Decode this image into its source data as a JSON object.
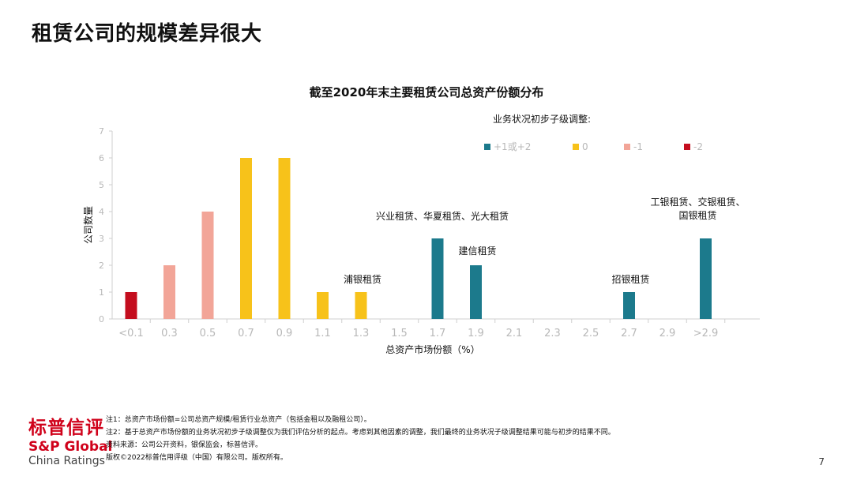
{
  "slide_title": "租赁公司的规模差异很大",
  "colors": {
    "plus": "#1c7a8c",
    "zero": "#f7c21a",
    "minus1": "#f2a598",
    "minus2": "#c40d1e",
    "axis": "#cfcfcf",
    "tick_text": "#b8b8b8",
    "brand_red": "#d0021b"
  },
  "chart_data": {
    "type": "bar",
    "title": "截至2020年末主要租赁公司总资产份额分布",
    "xlabel": "总资产市场份额（%）",
    "ylabel": "公司数量",
    "ylim": [
      0,
      7
    ],
    "yticks": [
      0,
      1,
      2,
      3,
      4,
      5,
      6,
      7
    ],
    "grid": false,
    "legend": {
      "title": "业务状况初步子级调整:",
      "placement": "top-right",
      "entries": [
        {
          "label": "+1或+2",
          "color_key": "plus"
        },
        {
          "label": "0",
          "color_key": "zero"
        },
        {
          "label": "-1",
          "color_key": "minus1"
        },
        {
          "label": "-2",
          "color_key": "minus2"
        }
      ]
    },
    "categories": [
      "<0.1",
      "0.3",
      "0.5",
      "0.7",
      "0.9",
      "1.1",
      "1.3",
      "1.5",
      "1.7",
      "1.9",
      "2.1",
      "2.3",
      "2.5",
      "2.7",
      "2.9",
      ">2.9"
    ],
    "bars": [
      {
        "category": "<0.1",
        "value": 1,
        "color_key": "minus2"
      },
      {
        "category": "0.3",
        "value": 2,
        "color_key": "minus1"
      },
      {
        "category": "0.5",
        "value": 4,
        "color_key": "minus1"
      },
      {
        "category": "0.7",
        "value": 6,
        "color_key": "zero"
      },
      {
        "category": "0.9",
        "value": 6,
        "color_key": "zero"
      },
      {
        "category": "1.1",
        "value": 1,
        "color_key": "zero"
      },
      {
        "category": "1.3",
        "value": 1,
        "color_key": "zero"
      },
      {
        "category": "1.7",
        "value": 3,
        "color_key": "plus"
      },
      {
        "category": "1.9",
        "value": 2,
        "color_key": "plus"
      },
      {
        "category": "2.7",
        "value": 1,
        "color_key": "plus"
      },
      {
        "category": ">2.9",
        "value": 3,
        "color_key": "plus"
      }
    ],
    "annotations": [
      {
        "category": "1.3",
        "lines": [
          "浦银租赁"
        ]
      },
      {
        "category": "1.7",
        "lines": [
          "兴业租赁、华夏租赁、光大租赁"
        ]
      },
      {
        "category": "1.9",
        "lines": [
          "建信租赁"
        ]
      },
      {
        "category": "2.7",
        "lines": [
          "招银租赁"
        ]
      },
      {
        "category": ">2.9",
        "lines": [
          "工银租赁、交银租赁、",
          "国银租赁"
        ]
      }
    ]
  },
  "footer": {
    "logo_cn": "标普信评",
    "logo_sp": "S&P Global",
    "logo_ratings": "China Ratings",
    "notes": [
      "注1：总资产市场份额=公司总资产规模/租赁行业总资产（包括金租以及融租公司）。",
      "注2：基于总资产市场份额的业务状况初步子级调整仅为我们评估分析的起点。考虑到其他因素的调整，我们最终的业务状况子级调整结果可能与初步的结果不同。",
      "资料来源：公司公开资料，银保监会，标普信评。",
      "版权©2022标普信用评级（中国）有限公司。版权所有。"
    ],
    "page_number": "7"
  }
}
